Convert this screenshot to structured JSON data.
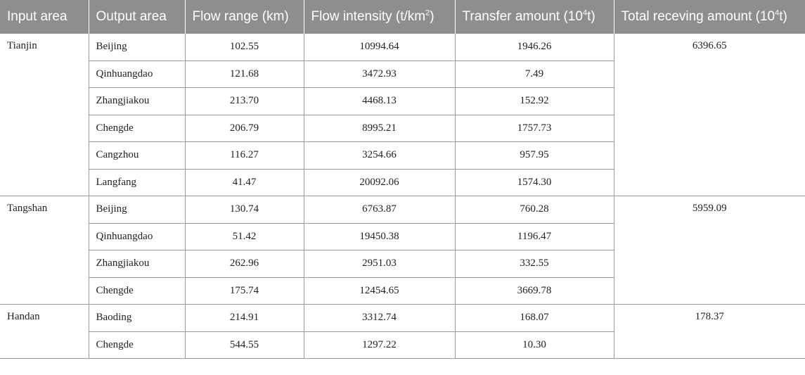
{
  "headers": {
    "input": "Input area",
    "output": "Output area",
    "range": "Flow range (km)",
    "intensity_main": "Flow intensity (t/km",
    "intensity_sup": "2",
    "intensity_end": ")",
    "transfer_main": "Transfer amount (10",
    "transfer_sup": "4",
    "transfer_end": "t)",
    "total_main": "Total receving amount (10",
    "total_sup": "4",
    "total_end": "t)"
  },
  "groups": [
    {
      "input": "Tianjin",
      "total": "6396.65",
      "rows": [
        {
          "output": "Beijing",
          "range": "102.55",
          "intensity": "10994.64",
          "transfer": "1946.26"
        },
        {
          "output": "Qinhuangdao",
          "range": "121.68",
          "intensity": "3472.93",
          "transfer": "7.49"
        },
        {
          "output": "Zhangjiakou",
          "range": "213.70",
          "intensity": "4468.13",
          "transfer": "152.92"
        },
        {
          "output": "Chengde",
          "range": "206.79",
          "intensity": "8995.21",
          "transfer": "1757.73"
        },
        {
          "output": "Cangzhou",
          "range": "116.27",
          "intensity": "3254.66",
          "transfer": "957.95"
        },
        {
          "output": "Langfang",
          "range": "41.47",
          "intensity": "20092.06",
          "transfer": "1574.30"
        }
      ]
    },
    {
      "input": "Tangshan",
      "total": "5959.09",
      "rows": [
        {
          "output": "Beijing",
          "range": "130.74",
          "intensity": "6763.87",
          "transfer": "760.28"
        },
        {
          "output": "Qinhuangdao",
          "range": "51.42",
          "intensity": "19450.38",
          "transfer": "1196.47"
        },
        {
          "output": "Zhangjiakou",
          "range": "262.96",
          "intensity": "2951.03",
          "transfer": "332.55"
        },
        {
          "output": "Chengde",
          "range": "175.74",
          "intensity": "12454.65",
          "transfer": "3669.78"
        }
      ]
    },
    {
      "input": "Handan",
      "total": "178.37",
      "rows": [
        {
          "output": "Baoding",
          "range": "214.91",
          "intensity": "3312.74",
          "transfer": "168.07"
        },
        {
          "output": "Chengde",
          "range": "544.55",
          "intensity": "1297.22",
          "transfer": "10.30"
        }
      ]
    }
  ]
}
